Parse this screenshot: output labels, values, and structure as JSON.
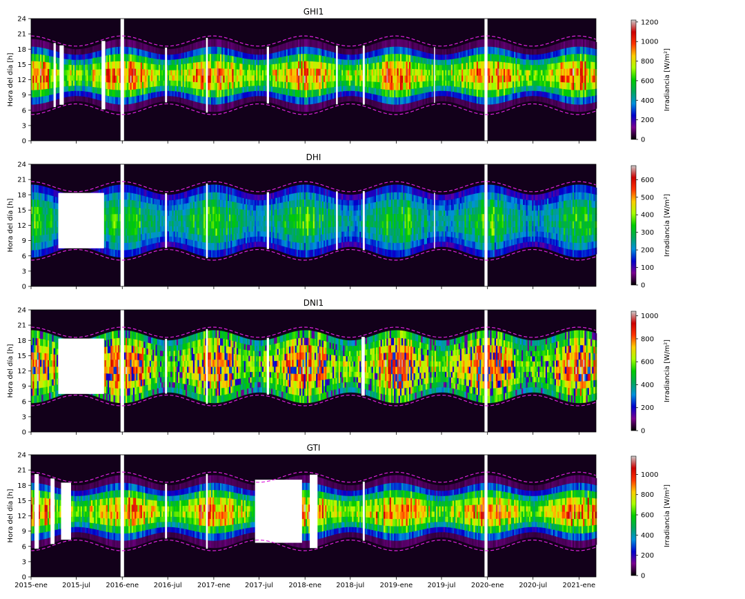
{
  "chart_data": [
    {
      "type": "heatmap",
      "title": "GHI1",
      "ylabel": "Hora del día [h]",
      "yticks": [
        "0",
        "3",
        "6",
        "9",
        "12",
        "15",
        "18",
        "21",
        "24"
      ],
      "ylim": [
        0,
        24
      ],
      "colorbar_label": "Irradiancia [W/m²]",
      "colorbar_ticks": [
        "0",
        "200",
        "400",
        "600",
        "800",
        "1000",
        "1200"
      ],
      "colorbar_range": [
        0,
        1220
      ],
      "peak_value": 1050,
      "missing_blocks": [
        [
          "2015-04-01",
          "2015-04-10"
        ],
        [
          "2015-04-25",
          "2015-05-12"
        ],
        [
          "2015-10-10",
          "2015-10-25"
        ],
        [
          "2015-12-25",
          "2016-01-08"
        ],
        [
          "2016-06-20",
          "2016-06-28"
        ],
        [
          "2016-12-01",
          "2016-12-08"
        ],
        [
          "2017-08-01",
          "2017-08-10"
        ],
        [
          "2018-05-05",
          "2018-05-12"
        ],
        [
          "2018-08-20",
          "2018-08-28"
        ],
        [
          "2019-06-01",
          "2019-06-05"
        ],
        [
          "2019-12-20",
          "2020-01-01"
        ]
      ],
      "sunrise_sunset_envelope": true
    },
    {
      "type": "heatmap",
      "title": "DHI",
      "ylabel": "Hora del día [h]",
      "yticks": [
        "0",
        "3",
        "6",
        "9",
        "12",
        "15",
        "18",
        "21",
        "24"
      ],
      "ylim": [
        0,
        24
      ],
      "colorbar_label": "Irradiancia [W/m²]",
      "colorbar_ticks": [
        "0",
        "100",
        "200",
        "300",
        "400",
        "500",
        "600"
      ],
      "colorbar_range": [
        0,
        680
      ],
      "peak_value": 360,
      "missing_blocks": [
        [
          "2015-04-20",
          "2015-10-20"
        ],
        [
          "2015-12-25",
          "2016-01-08"
        ],
        [
          "2016-06-20",
          "2016-06-28"
        ],
        [
          "2016-12-01",
          "2016-12-08"
        ],
        [
          "2017-08-01",
          "2017-08-10"
        ],
        [
          "2018-05-05",
          "2018-05-12"
        ],
        [
          "2018-08-20",
          "2018-08-28"
        ],
        [
          "2019-06-01",
          "2019-06-05"
        ],
        [
          "2019-12-20",
          "2020-01-01"
        ]
      ],
      "sunrise_sunset_envelope": true
    },
    {
      "type": "heatmap",
      "title": "DNI1",
      "ylabel": "Hora del día [h]",
      "yticks": [
        "0",
        "3",
        "6",
        "9",
        "12",
        "15",
        "18",
        "21",
        "24"
      ],
      "ylim": [
        0,
        24
      ],
      "colorbar_label": "Irradiancia [W/m²]",
      "colorbar_ticks": [
        "0",
        "200",
        "400",
        "600",
        "800",
        "1000"
      ],
      "colorbar_range": [
        0,
        1040
      ],
      "peak_value": 900,
      "missing_blocks": [
        [
          "2015-04-20",
          "2015-10-20"
        ],
        [
          "2015-12-25",
          "2016-01-08"
        ],
        [
          "2016-06-20",
          "2016-06-28"
        ],
        [
          "2016-12-01",
          "2016-12-08"
        ],
        [
          "2017-08-01",
          "2017-08-10"
        ],
        [
          "2018-08-15",
          "2018-08-28"
        ],
        [
          "2019-12-20",
          "2020-01-01"
        ]
      ],
      "sunrise_sunset_envelope": true
    },
    {
      "type": "heatmap",
      "title": "GTI",
      "ylabel": "Hora del día [h]",
      "yticks": [
        "0",
        "3",
        "6",
        "9",
        "12",
        "15",
        "18",
        "21",
        "24"
      ],
      "ylim": [
        0,
        24
      ],
      "colorbar_label": "Irradiancia [W/m²]",
      "colorbar_ticks": [
        "0",
        "200",
        "400",
        "600",
        "800",
        "1000"
      ],
      "colorbar_range": [
        0,
        1180
      ],
      "peak_value": 1000,
      "missing_blocks": [
        [
          "2015-01-15",
          "2015-02-01"
        ],
        [
          "2015-03-20",
          "2015-04-05"
        ],
        [
          "2015-05-01",
          "2015-06-10"
        ],
        [
          "2015-12-25",
          "2016-01-08"
        ],
        [
          "2016-06-20",
          "2016-06-28"
        ],
        [
          "2016-12-01",
          "2016-12-08"
        ],
        [
          "2017-06-15",
          "2017-12-20"
        ],
        [
          "2018-01-20",
          "2018-02-20"
        ],
        [
          "2018-08-20",
          "2018-08-28"
        ],
        [
          "2019-12-20",
          "2020-01-01"
        ]
      ],
      "sunrise_sunset_envelope": true
    }
  ],
  "xaxis": {
    "ticks": [
      "2015-ene",
      "2015-jul",
      "2016-ene",
      "2016-jul",
      "2017-ene",
      "2017-jul",
      "2018-ene",
      "2018-jul",
      "2019-ene",
      "2019-jul",
      "2020-ene",
      "2020-jul",
      "2021-ene"
    ],
    "range": [
      "2015-01-01",
      "2021-03-10"
    ]
  },
  "colors": {
    "night": "#12001a",
    "envelope_line": "#dd22dd",
    "colormap": [
      "#000000",
      "#7a0090",
      "#0000cc",
      "#0090dd",
      "#00a85a",
      "#00cc00",
      "#aaff00",
      "#ffcc00",
      "#ff3300",
      "#cc0000",
      "#cccccc"
    ]
  }
}
